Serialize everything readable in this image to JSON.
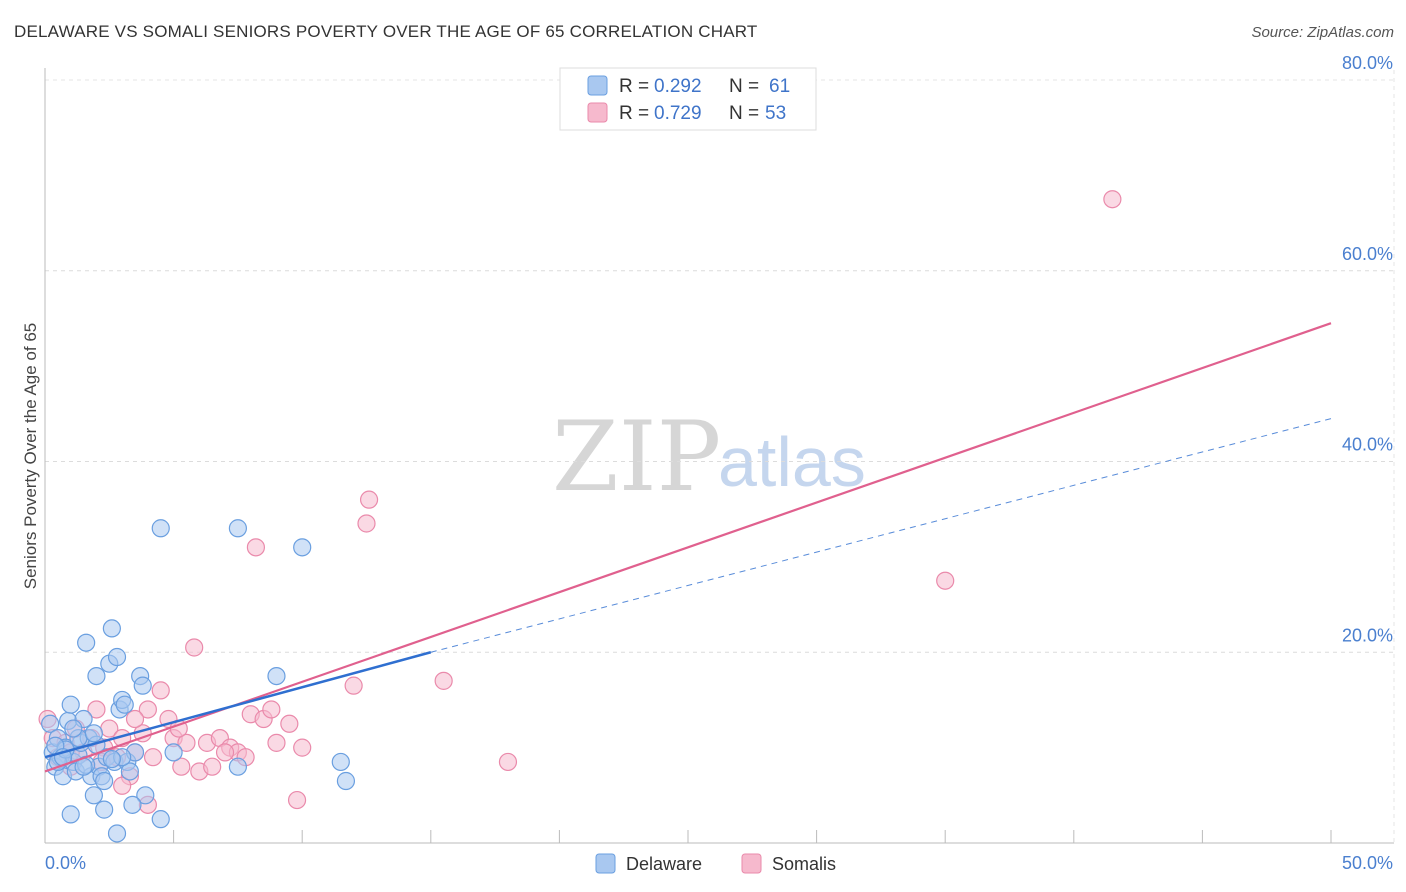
{
  "title": "DELAWARE VS SOMALI SENIORS POVERTY OVER THE AGE OF 65 CORRELATION CHART",
  "source": "Source: ZipAtlas.com",
  "watermark": {
    "zip": "ZIP",
    "atlas": "atlas"
  },
  "legend": {
    "rows": [
      {
        "r_label": "R =",
        "r_value": "0.292",
        "n_label": "N =",
        "n_value": "61",
        "color": "#a9c8f0"
      },
      {
        "r_label": "R =",
        "r_value": "0.729",
        "n_label": "N =",
        "n_value": "53",
        "color": "#f6b9cd"
      }
    ]
  },
  "bottom_legend": [
    {
      "label": "Delaware",
      "color": "#a9c8f0"
    },
    {
      "label": "Somalis",
      "color": "#f6b9cd"
    }
  ],
  "colors": {
    "delaware_fill": "#a9c8f0",
    "delaware_stroke": "#6a9fe0",
    "delaware_line": "#2f6fd0",
    "somalis_fill": "#f6b9cd",
    "somalis_stroke": "#ea8aab",
    "somalis_line": "#e0608e"
  },
  "chart_data": {
    "type": "scatter",
    "title": "DELAWARE VS SOMALI SENIORS POVERTY OVER THE AGE OF 65 CORRELATION CHART",
    "xlabel": "",
    "ylabel": "Seniors Poverty Over the Age of 65",
    "xlim": [
      0,
      50
    ],
    "ylim": [
      0,
      80
    ],
    "x_tick_labels": [
      "0.0%",
      "50.0%"
    ],
    "y_ticks": [
      20,
      40,
      60,
      80
    ],
    "y_tick_labels": [
      "20.0%",
      "40.0%",
      "60.0%",
      "80.0%"
    ],
    "grid": true,
    "series": [
      {
        "name": "Delaware",
        "r": 0.292,
        "n": 61,
        "trend": {
          "x0": 0,
          "y0": 9.0,
          "x1": 15,
          "y1": 20.0,
          "dashed_to_x": 50,
          "dashed_to_y": 44.5
        },
        "points": [
          [
            0.2,
            12.5
          ],
          [
            0.3,
            9.5
          ],
          [
            0.4,
            8.0
          ],
          [
            0.5,
            11.0
          ],
          [
            0.6,
            9.0
          ],
          [
            0.7,
            7.0
          ],
          [
            0.8,
            10.0
          ],
          [
            0.9,
            12.8
          ],
          [
            1.0,
            14.5
          ],
          [
            1.1,
            8.5
          ],
          [
            1.2,
            7.5
          ],
          [
            1.3,
            9.2
          ],
          [
            1.4,
            10.5
          ],
          [
            1.5,
            13.0
          ],
          [
            1.6,
            21.0
          ],
          [
            1.7,
            11.0
          ],
          [
            1.8,
            7.0
          ],
          [
            1.9,
            5.0
          ],
          [
            2.0,
            17.5
          ],
          [
            2.1,
            8.0
          ],
          [
            2.2,
            7.0
          ],
          [
            2.3,
            6.5
          ],
          [
            2.4,
            9.0
          ],
          [
            2.5,
            18.8
          ],
          [
            2.6,
            22.5
          ],
          [
            2.7,
            8.5
          ],
          [
            2.8,
            19.5
          ],
          [
            2.9,
            14.0
          ],
          [
            3.0,
            15.0
          ],
          [
            3.1,
            14.5
          ],
          [
            3.2,
            8.5
          ],
          [
            3.3,
            7.5
          ],
          [
            3.5,
            9.5
          ],
          [
            3.7,
            17.5
          ],
          [
            3.8,
            16.5
          ],
          [
            3.9,
            5.0
          ],
          [
            4.5,
            33.0
          ],
          [
            5.0,
            9.5
          ],
          [
            7.5,
            33.0
          ],
          [
            7.5,
            8.0
          ],
          [
            9.0,
            17.5
          ],
          [
            10.0,
            31.0
          ],
          [
            11.5,
            8.5
          ],
          [
            11.7,
            6.5
          ],
          [
            1.0,
            3.0
          ],
          [
            2.3,
            3.5
          ],
          [
            2.8,
            1.0
          ],
          [
            4.5,
            2.5
          ],
          [
            1.3,
            11.0
          ],
          [
            0.5,
            8.5
          ],
          [
            0.8,
            9.8
          ],
          [
            1.6,
            8.2
          ],
          [
            2.0,
            10.3
          ],
          [
            3.0,
            9.0
          ],
          [
            0.4,
            10.2
          ],
          [
            1.1,
            12.0
          ],
          [
            1.9,
            11.5
          ],
          [
            2.6,
            8.8
          ],
          [
            3.4,
            4.0
          ],
          [
            0.7,
            9.0
          ],
          [
            1.5,
            8.0
          ]
        ]
      },
      {
        "name": "Somalis",
        "r": 0.729,
        "n": 53,
        "trend": {
          "x0": 0,
          "y0": 7.5,
          "x1": 50,
          "y1": 54.5
        },
        "points": [
          [
            0.1,
            13.0
          ],
          [
            0.3,
            11.0
          ],
          [
            0.5,
            9.0
          ],
          [
            0.8,
            10.5
          ],
          [
            1.0,
            8.0
          ],
          [
            1.2,
            12.0
          ],
          [
            1.5,
            9.5
          ],
          [
            1.8,
            11.0
          ],
          [
            2.0,
            14.0
          ],
          [
            2.3,
            10.0
          ],
          [
            2.5,
            12.0
          ],
          [
            2.8,
            9.0
          ],
          [
            3.0,
            11.0
          ],
          [
            3.3,
            7.0
          ],
          [
            3.5,
            9.5
          ],
          [
            3.8,
            11.5
          ],
          [
            4.0,
            14.0
          ],
          [
            4.2,
            9.0
          ],
          [
            4.5,
            16.0
          ],
          [
            4.8,
            13.0
          ],
          [
            5.0,
            11.0
          ],
          [
            5.3,
            8.0
          ],
          [
            5.5,
            10.5
          ],
          [
            5.8,
            20.5
          ],
          [
            6.0,
            7.5
          ],
          [
            6.3,
            10.5
          ],
          [
            6.8,
            11.0
          ],
          [
            7.2,
            10.0
          ],
          [
            7.5,
            9.5
          ],
          [
            7.8,
            9.0
          ],
          [
            8.0,
            13.5
          ],
          [
            8.2,
            31.0
          ],
          [
            8.5,
            13.0
          ],
          [
            8.8,
            14.0
          ],
          [
            9.0,
            10.5
          ],
          [
            9.5,
            12.5
          ],
          [
            10.0,
            10.0
          ],
          [
            12.0,
            16.5
          ],
          [
            12.5,
            33.5
          ],
          [
            12.6,
            36.0
          ],
          [
            15.5,
            17.0
          ],
          [
            18.0,
            8.5
          ],
          [
            35.0,
            27.5
          ],
          [
            41.5,
            67.5
          ],
          [
            9.8,
            4.5
          ],
          [
            3.5,
            13.0
          ],
          [
            2.2,
            8.5
          ],
          [
            6.5,
            8.0
          ],
          [
            1.0,
            9.5
          ],
          [
            4.0,
            4.0
          ],
          [
            7.0,
            9.5
          ],
          [
            5.2,
            12.0
          ],
          [
            3.0,
            6.0
          ]
        ]
      }
    ]
  }
}
